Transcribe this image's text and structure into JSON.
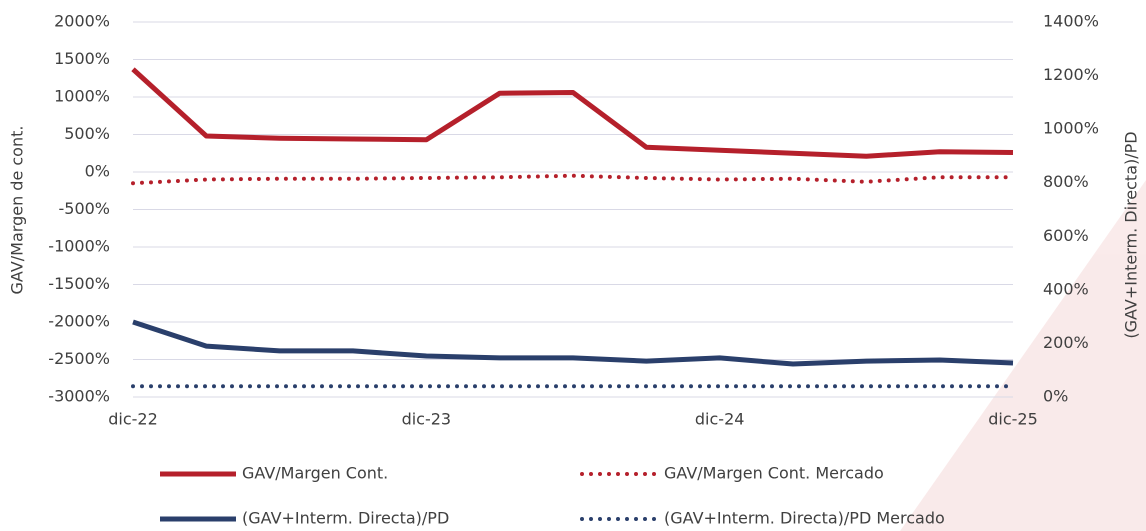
{
  "chart_data": {
    "type": "line",
    "y_label": "GAV/Margen de cont.",
    "y2_label": "(GAV+Interm. Directa)/PD",
    "categories": [
      "dic-22",
      null,
      null,
      null,
      "dic-23",
      null,
      null,
      null,
      "dic-24",
      null,
      null,
      null,
      "dic-25"
    ],
    "series": [
      {
        "name": "GAV/Margen Cont.",
        "color": "#b5202b",
        "style": "solid",
        "axis": "y",
        "values": [
          1370,
          480,
          450,
          440,
          430,
          1050,
          1060,
          330,
          290,
          250,
          210,
          270,
          260
        ]
      },
      {
        "name": "GAV/Margen Cont. Mercado",
        "color": "#b5202b",
        "style": "dotted",
        "axis": "y",
        "values": [
          -150,
          -100,
          -90,
          -90,
          -80,
          -70,
          -50,
          -80,
          -100,
          -90,
          -130,
          -70,
          -70
        ]
      },
      {
        "name": "(GAV+Interm. Directa)/PD",
        "color": "#2a3f6b",
        "style": "solid",
        "axis": "y2",
        "values": [
          280,
          190,
          172,
          172,
          153,
          146,
          146,
          134,
          146,
          123,
          134,
          138,
          127
        ]
      },
      {
        "name": "(GAV+Interm. Directa)/PD Mercado",
        "color": "#2a3f6b",
        "style": "dotted",
        "axis": "y2",
        "values": [
          40,
          40,
          40,
          40,
          40,
          40,
          40,
          40,
          40,
          40,
          40,
          40,
          40
        ]
      }
    ],
    "ylim": [
      -3000,
      2000
    ],
    "yticks": [
      {
        "value": -3000,
        "label": "-3000%"
      },
      {
        "value": -2500,
        "label": "-2500%"
      },
      {
        "value": -2000,
        "label": "-2000%"
      },
      {
        "value": -1500,
        "label": "-1500%"
      },
      {
        "value": -1000,
        "label": "-1000%"
      },
      {
        "value": -500,
        "label": "-500%"
      },
      {
        "value": 0,
        "label": "0%"
      },
      {
        "value": 500,
        "label": "500%"
      },
      {
        "value": 1000,
        "label": "1000%"
      },
      {
        "value": 1500,
        "label": "1500%"
      },
      {
        "value": 2000,
        "label": "2000%"
      }
    ],
    "y2lim": [
      0,
      1400
    ],
    "y2ticks": [
      {
        "value": 0,
        "label": "0%"
      },
      {
        "value": 200,
        "label": "200%"
      },
      {
        "value": 400,
        "label": "400%"
      },
      {
        "value": 600,
        "label": "600%"
      },
      {
        "value": 800,
        "label": "800%"
      },
      {
        "value": 1000,
        "label": "1000%"
      },
      {
        "value": 1200,
        "label": "1200%"
      },
      {
        "value": 1400,
        "label": "1400%"
      }
    ],
    "grid": true,
    "legend": "bottom"
  }
}
